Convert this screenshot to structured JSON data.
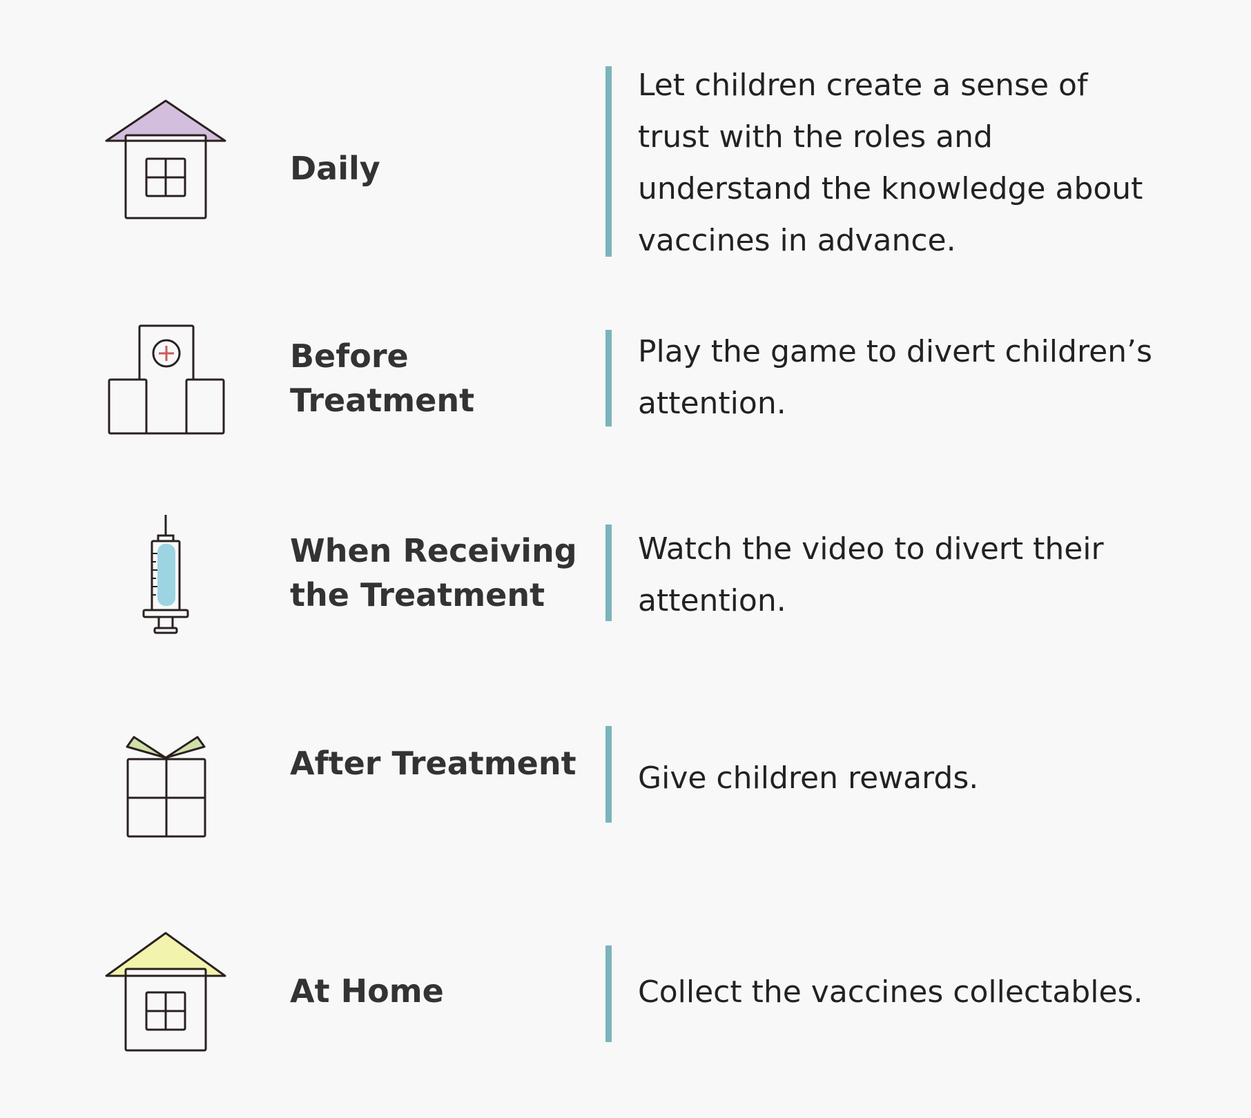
{
  "colors": {
    "background": "#f8f8f8",
    "divider": "#7bb4bb",
    "stroke": "#2a2020",
    "roof_daily": "#d3bfdd",
    "roof_home": "#f2f3ac",
    "syringe_fluid": "#9dd4e2",
    "gift_bow": "#cfe0a8",
    "hospital_cross": "#cc5a5a"
  },
  "rows": [
    {
      "icon": "house-purple-roof-icon",
      "stage": "Daily",
      "description": "Let children create a sense of trust with the roles and understand the knowledge about vaccines in advance."
    },
    {
      "icon": "hospital-icon",
      "stage": "Before Treatment",
      "description": "Play the game to divert children’s attention."
    },
    {
      "icon": "syringe-icon",
      "stage": "When Receiving the Treatment",
      "description": "Watch the video to divert their attention."
    },
    {
      "icon": "gift-icon",
      "stage": "After Treatment",
      "description": "Give children rewards."
    },
    {
      "icon": "house-yellow-roof-icon",
      "stage": "At Home",
      "description": "Collect the vaccines collectables."
    }
  ]
}
